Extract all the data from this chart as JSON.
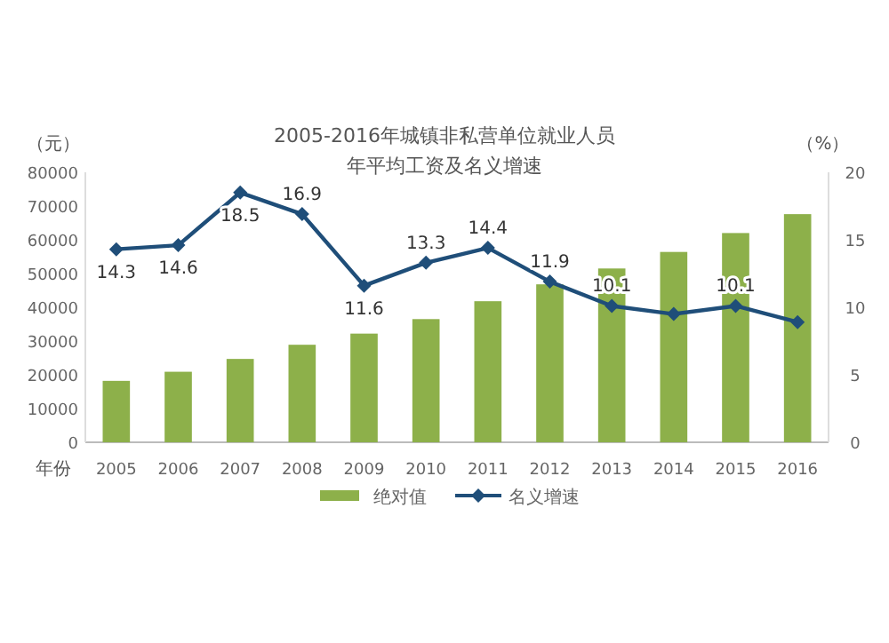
{
  "chart_data": {
    "type": "bar",
    "title": "2005-2016年城镇非私营单位就业人员年平均工资及名义增速",
    "categories": [
      "2005",
      "2006",
      "2007",
      "2008",
      "2009",
      "2010",
      "2011",
      "2012",
      "2013",
      "2014",
      "2015",
      "2016"
    ],
    "xlabel": "年份",
    "ylabel": "（元）",
    "y2label": "（%）",
    "series": [
      {
        "name": "绝对值",
        "color": "#8db04a",
        "values": [
          18200,
          20900,
          24700,
          28900,
          32200,
          36500,
          41800,
          46800,
          51500,
          56400,
          62000,
          67600
        ]
      },
      {
        "name": "名义增速",
        "type": "line",
        "axis": "y2",
        "color": "#1f4e79",
        "marker": "diamond",
        "values": [
          14.3,
          14.6,
          18.5,
          16.9,
          11.6,
          13.3,
          14.4,
          11.9,
          10.1,
          9.5,
          10.1,
          8.9
        ],
        "value_labels": [
          "14.3",
          "14.6",
          "18.5",
          "16.9",
          "11.6",
          "13.3",
          "14.4",
          "11.9",
          "10.1",
          null,
          "10.1",
          null
        ]
      }
    ],
    "ylim": [
      0,
      80000
    ],
    "yticks": [
      0,
      10000,
      20000,
      30000,
      40000,
      50000,
      60000,
      70000,
      80000
    ],
    "y2lim": [
      0,
      20
    ],
    "y2ticks": [
      0,
      5,
      10,
      15,
      20
    ],
    "grid": false,
    "legend": "bottom"
  }
}
